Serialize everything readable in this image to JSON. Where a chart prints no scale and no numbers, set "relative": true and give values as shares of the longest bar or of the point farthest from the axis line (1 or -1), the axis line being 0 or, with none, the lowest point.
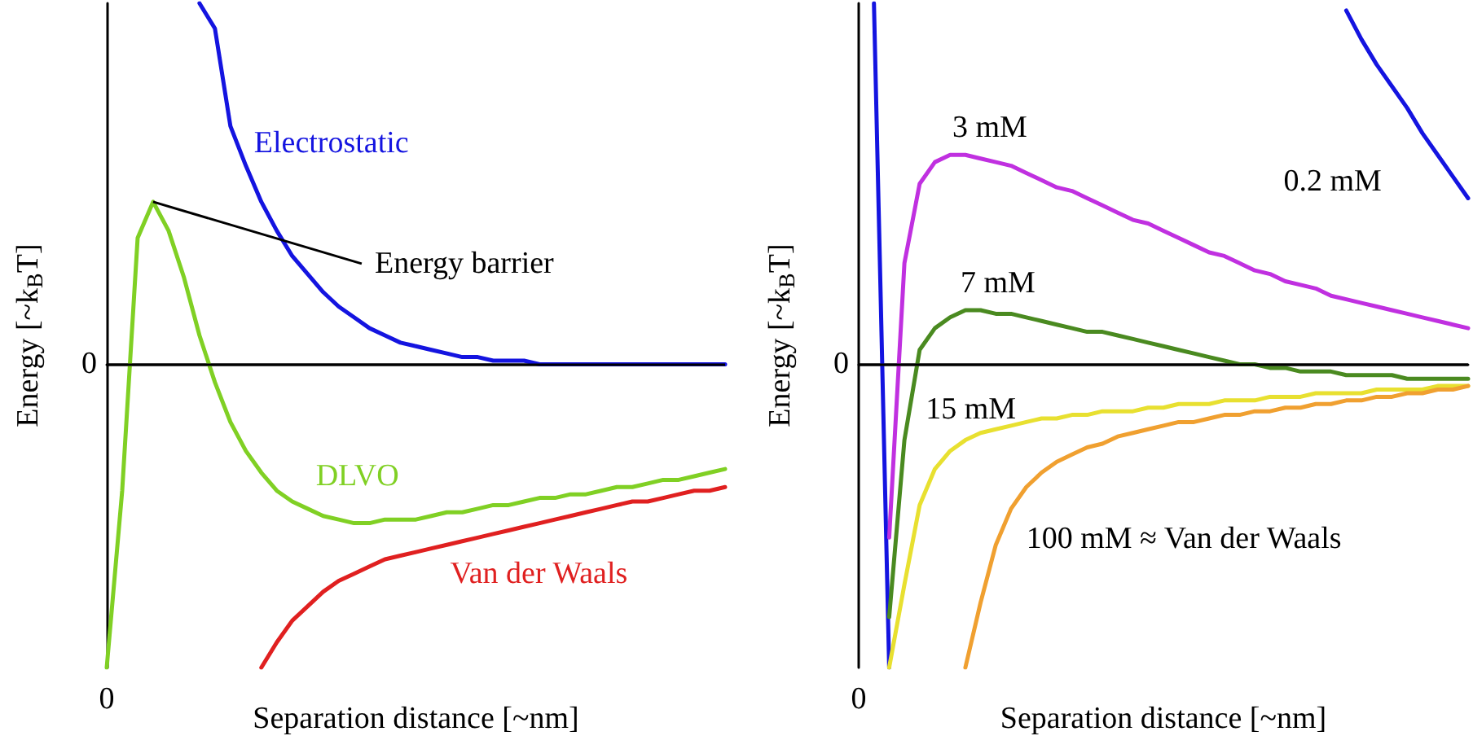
{
  "chart_data": [
    {
      "type": "line",
      "xlabel": "Separation distance [~nm]",
      "ylabel": "Energy [~k$_{B}$T]",
      "relative": true,
      "categories": [
        null,
        null,
        null,
        null,
        null,
        null,
        null,
        null,
        null,
        null,
        null,
        null,
        null,
        null,
        null,
        null,
        null,
        null,
        null,
        null,
        null,
        null,
        null,
        null,
        null,
        null,
        null,
        null,
        null,
        null,
        null,
        null,
        null,
        null,
        null,
        null,
        null,
        null,
        null,
        null,
        null
      ],
      "series": [
        {
          "name": "Electrostatic",
          "color": "#1414e0",
          "values": [
            null,
            null,
            null,
            null,
            null,
            null,
            1.0,
            0.93,
            0.66,
            0.55,
            0.45,
            0.37,
            0.3,
            0.25,
            0.2,
            0.16,
            0.13,
            0.1,
            0.08,
            0.06,
            0.05,
            0.04,
            0.03,
            0.02,
            0.02,
            0.01,
            0.01,
            0.01,
            0,
            0,
            0,
            0,
            0,
            0,
            0,
            0,
            0,
            0,
            0,
            0,
            0
          ]
        },
        {
          "name": "DLVO",
          "color": "#80d024",
          "values": [
            -0.84,
            -0.35,
            0.35,
            0.45,
            0.37,
            0.24,
            0.08,
            -0.05,
            -0.16,
            -0.24,
            -0.3,
            -0.35,
            -0.38,
            -0.4,
            -0.42,
            -0.43,
            -0.44,
            -0.44,
            -0.43,
            -0.43,
            -0.43,
            -0.42,
            -0.41,
            -0.41,
            -0.4,
            -0.39,
            -0.39,
            -0.38,
            -0.37,
            -0.37,
            -0.36,
            -0.36,
            -0.35,
            -0.34,
            -0.34,
            -0.33,
            -0.32,
            -0.32,
            -0.31,
            -0.3,
            -0.29
          ]
        },
        {
          "name": "Van der Waals",
          "color": "#e02020",
          "values": [
            null,
            null,
            null,
            null,
            null,
            null,
            null,
            null,
            null,
            null,
            -0.84,
            -0.77,
            -0.71,
            -0.67,
            -0.63,
            -0.6,
            -0.58,
            -0.56,
            -0.54,
            -0.53,
            -0.52,
            -0.51,
            -0.5,
            -0.49,
            -0.48,
            -0.47,
            -0.46,
            -0.45,
            -0.44,
            -0.43,
            -0.42,
            -0.41,
            -0.4,
            -0.39,
            -0.38,
            -0.38,
            -0.37,
            -0.36,
            -0.35,
            -0.35,
            -0.34
          ]
        }
      ],
      "ref_lines": [
        {
          "axis": "y",
          "value": 0,
          "label": "0",
          "color": "#000000"
        }
      ],
      "annotations": [
        "Energy barrier",
        "0"
      ]
    },
    {
      "type": "line",
      "xlabel": "Separation distance [~nm]",
      "ylabel": "Energy [~k$_{B}$T]",
      "relative": true,
      "categories": [
        null,
        null,
        null,
        null,
        null,
        null,
        null,
        null,
        null,
        null,
        null,
        null,
        null,
        null,
        null,
        null,
        null,
        null,
        null,
        null,
        null,
        null,
        null,
        null,
        null,
        null,
        null,
        null,
        null,
        null,
        null,
        null,
        null,
        null,
        null,
        null,
        null,
        null,
        null,
        null,
        null
      ],
      "annotations": [
        "0"
      ],
      "series": [
        {
          "name": "0.2 mM",
          "color": "#1414e0",
          "values": [
            null,
            1.0,
            -0.84,
            null,
            null,
            null,
            null,
            null,
            null,
            null,
            null,
            null,
            null,
            null,
            null,
            null,
            null,
            null,
            null,
            null,
            null,
            null,
            null,
            null,
            null,
            null,
            null,
            null,
            null,
            null,
            null,
            null,
            0.98,
            0.9,
            0.83,
            0.77,
            0.71,
            0.64,
            0.58,
            0.52,
            0.46
          ]
        },
        {
          "name": "3 mM",
          "color": "#c030e0",
          "values": [
            null,
            null,
            -0.48,
            0.28,
            0.5,
            0.56,
            0.58,
            0.58,
            0.57,
            0.56,
            0.55,
            0.53,
            0.51,
            0.49,
            0.48,
            0.46,
            0.44,
            0.42,
            0.4,
            0.39,
            0.37,
            0.35,
            0.33,
            0.31,
            0.3,
            0.28,
            0.26,
            0.25,
            0.23,
            0.22,
            0.21,
            0.19,
            0.18,
            0.17,
            0.16,
            0.15,
            0.14,
            0.13,
            0.12,
            0.11,
            0.1
          ]
        },
        {
          "name": "7 mM",
          "color": "#4a8a20",
          "values": [
            null,
            null,
            -0.7,
            -0.21,
            0.04,
            0.1,
            0.13,
            0.15,
            0.15,
            0.14,
            0.14,
            0.13,
            0.12,
            0.11,
            0.1,
            0.09,
            0.09,
            0.08,
            0.07,
            0.06,
            0.05,
            0.04,
            0.03,
            0.02,
            0.01,
            0,
            0,
            -0.01,
            -0.01,
            -0.02,
            -0.02,
            -0.02,
            -0.03,
            -0.03,
            -0.03,
            -0.03,
            -0.04,
            -0.04,
            -0.04,
            -0.04,
            -0.04
          ]
        },
        {
          "name": "15 mM",
          "color": "#e8e030",
          "values": [
            null,
            null,
            -0.84,
            -0.61,
            -0.39,
            -0.29,
            -0.24,
            -0.21,
            -0.19,
            -0.18,
            -0.17,
            -0.16,
            -0.15,
            -0.15,
            -0.14,
            -0.14,
            -0.13,
            -0.13,
            -0.13,
            -0.12,
            -0.12,
            -0.11,
            -0.11,
            -0.11,
            -0.1,
            -0.1,
            -0.1,
            -0.09,
            -0.09,
            -0.09,
            -0.08,
            -0.08,
            -0.08,
            -0.08,
            -0.07,
            -0.07,
            -0.07,
            -0.07,
            -0.06,
            -0.06,
            -0.06
          ]
        },
        {
          "name": "100 mM ≈ Van der Waals",
          "color": "#f0a030",
          "values": [
            null,
            null,
            null,
            null,
            null,
            null,
            null,
            -0.84,
            -0.66,
            -0.5,
            -0.4,
            -0.34,
            -0.3,
            -0.27,
            -0.25,
            -0.23,
            -0.22,
            -0.2,
            -0.19,
            -0.18,
            -0.17,
            -0.16,
            -0.16,
            -0.15,
            -0.14,
            -0.14,
            -0.13,
            -0.13,
            -0.12,
            -0.12,
            -0.11,
            -0.11,
            -0.1,
            -0.1,
            -0.09,
            -0.09,
            -0.08,
            -0.08,
            -0.07,
            -0.07,
            -0.06
          ]
        }
      ],
      "ref_lines": [
        {
          "axis": "y",
          "value": 0,
          "label": "0",
          "color": "#000000"
        }
      ]
    }
  ]
}
